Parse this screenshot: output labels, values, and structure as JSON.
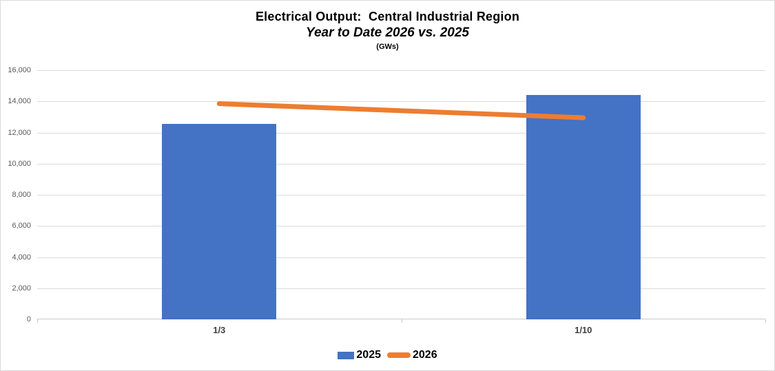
{
  "header": {
    "title": "Electrical Output:  Central Industrial Region",
    "subtitle": "Year to Date 2026 vs. 2025",
    "units": "(GWs)"
  },
  "chart_data": {
    "type": "bar",
    "subtype": "combo-bar-line",
    "title": "Electrical Output:  Central Industrial Region",
    "subtitle": "Year to Date 2026 vs. 2025",
    "units": "(GWs)",
    "categories": [
      "1/3",
      "1/10"
    ],
    "series": [
      {
        "name": "2025",
        "type": "bar",
        "color": "#4472C4",
        "values": [
          12550,
          14400
        ]
      },
      {
        "name": "2026",
        "type": "line",
        "color": "#ED7D31",
        "values": [
          13850,
          12950
        ]
      }
    ],
    "xlabel": "",
    "ylabel": "",
    "ylim": [
      0,
      16000
    ],
    "ytick_step": 2000,
    "ytick_labels": [
      "0",
      "2,000",
      "4,000",
      "6,000",
      "8,000",
      "10,000",
      "12,000",
      "14,000",
      "16,000"
    ],
    "grid": true,
    "gridline_color": "#d9d9d9",
    "axis_text_color": "#595959",
    "legend_position": "bottom"
  }
}
